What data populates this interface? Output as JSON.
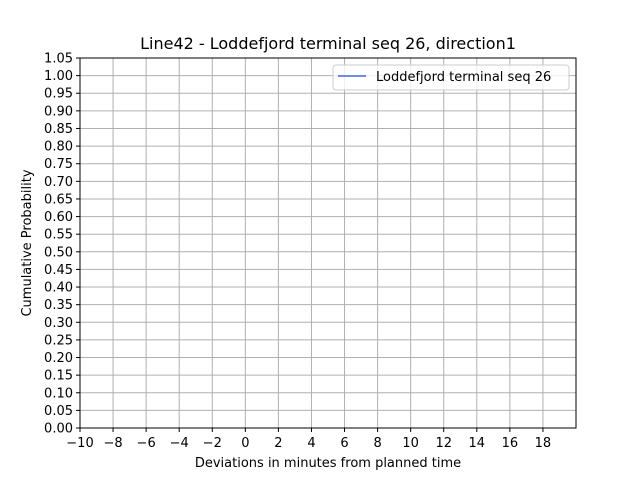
{
  "chart_data": {
    "type": "line",
    "title": "Line42 - Loddefjord terminal seq 26, direction1",
    "xlabel": "Deviations in minutes from planned time",
    "ylabel": "Cumulative Probability",
    "xlim": [
      -10,
      20
    ],
    "ylim": [
      0,
      1.05
    ],
    "x_ticks": [
      "−10",
      "−8",
      "−6",
      "−4",
      "−2",
      "0",
      "2",
      "4",
      "6",
      "8",
      "10",
      "12",
      "14",
      "16",
      "18"
    ],
    "y_ticks": [
      "0.00",
      "0.05",
      "0.10",
      "0.15",
      "0.20",
      "0.25",
      "0.30",
      "0.35",
      "0.40",
      "0.45",
      "0.50",
      "0.55",
      "0.60",
      "0.65",
      "0.70",
      "0.75",
      "0.80",
      "0.85",
      "0.90",
      "0.95",
      "1.00",
      "1.05"
    ],
    "grid": true,
    "legend_position": "top-right",
    "series": [
      {
        "name": "Loddefjord terminal seq 26",
        "color": "#4169e1",
        "x": [],
        "y": []
      }
    ]
  }
}
